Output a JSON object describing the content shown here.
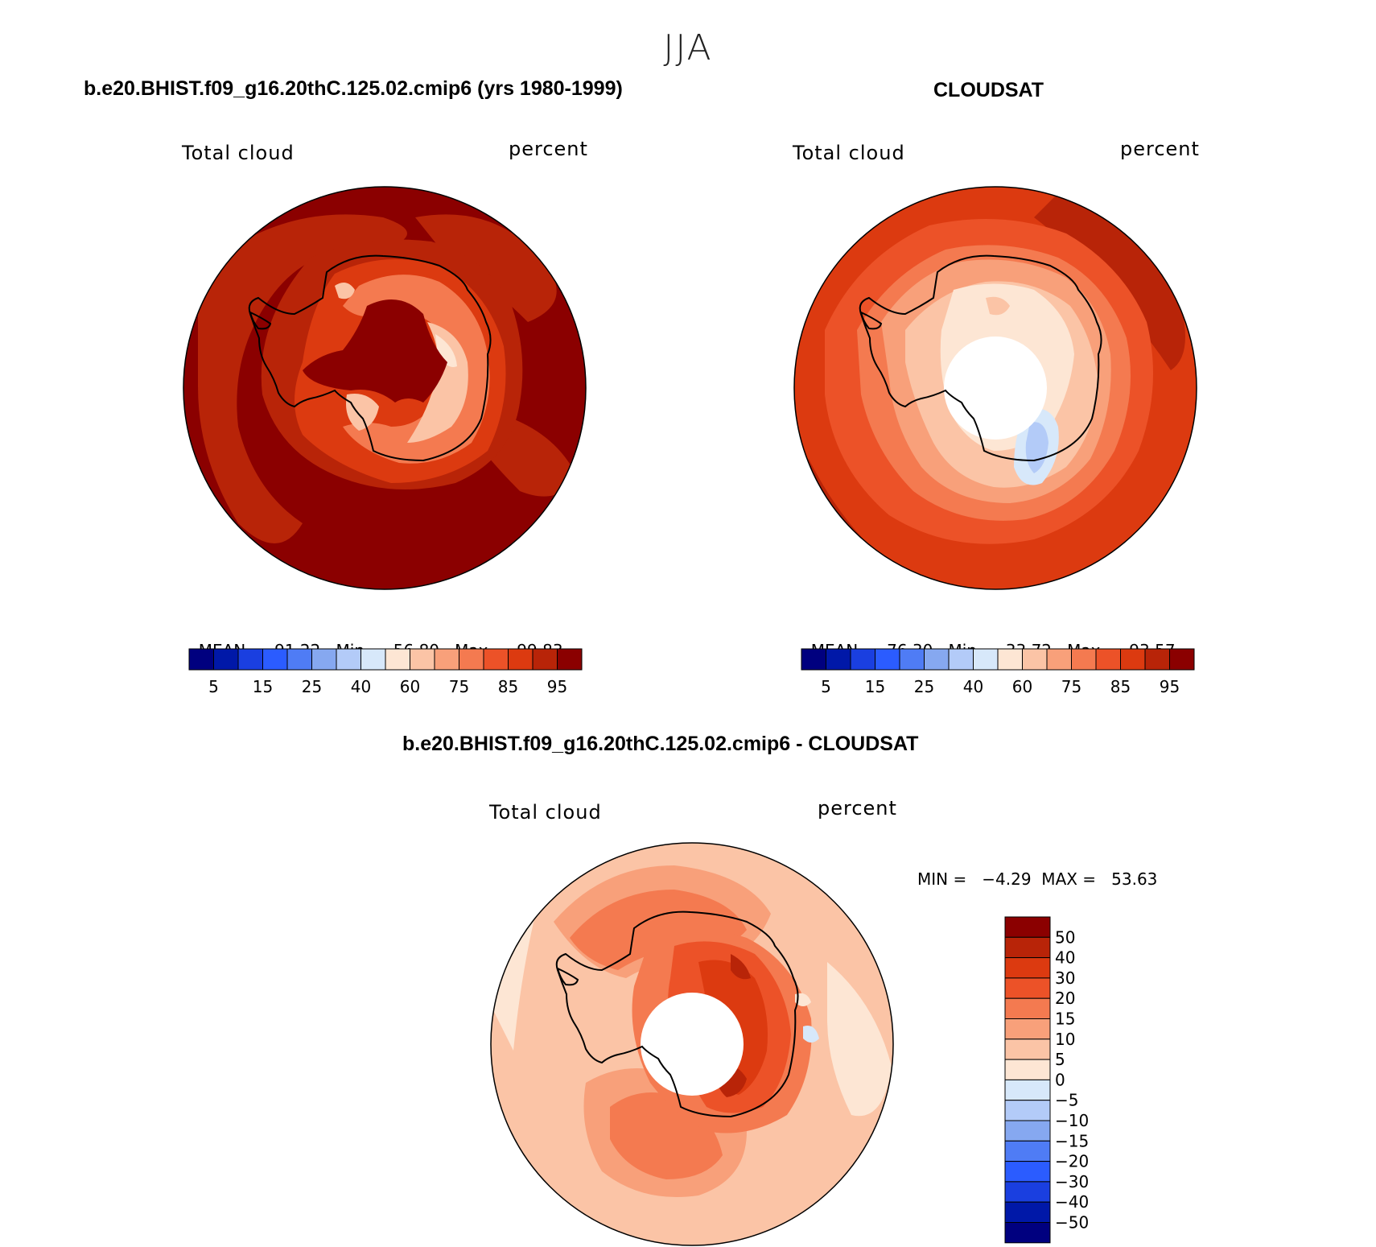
{
  "main_title": "JJA",
  "panels": [
    {
      "title": "b.e20.BHIST.f09_g16.20thC.125.02.cmip6 (yrs 1980-1999)",
      "variable": "Total cloud",
      "units": "percent",
      "stats": {
        "mean_label": "MEAN=",
        "mean": "91.22",
        "min_label": "Min=",
        "min": "56.80",
        "max_label": "Max=",
        "max": "99.83"
      }
    },
    {
      "title": "CLOUDSAT",
      "variable": "Total cloud",
      "units": "percent",
      "stats": {
        "mean_label": "MEAN=",
        "mean": "76.30",
        "min_label": "Min=",
        "min": "33.72",
        "max_label": "Max=",
        "max": "93.57"
      }
    },
    {
      "title": "b.e20.BHIST.f09_g16.20thC.125.02.cmip6 - CLOUDSAT",
      "variable": "Total cloud",
      "units": "percent",
      "stats_text": "MIN =   −4.29  MAX =   53.63"
    }
  ],
  "colorbar_abs": {
    "colors": [
      "#00007f",
      "#0018a8",
      "#1a3fe0",
      "#2b5cff",
      "#4f7cf5",
      "#86a8f0",
      "#b3cbf8",
      "#d7e8fa",
      "#fde6d4",
      "#fbc4a6",
      "#f8a07a",
      "#f47a50",
      "#ec5228",
      "#dc3a10",
      "#b82408",
      "#8b0000"
    ],
    "tick_labels": [
      "5",
      "15",
      "25",
      "40",
      "60",
      "75",
      "85",
      "95"
    ]
  },
  "colorbar_diff": {
    "colors": [
      "#8b0000",
      "#b82408",
      "#dc3a10",
      "#ec5228",
      "#f47a50",
      "#f8a07a",
      "#fbc4a6",
      "#fde6d4",
      "#d7e8fa",
      "#b3cbf8",
      "#86a8f0",
      "#4f7cf5",
      "#2b5cff",
      "#1a3fe0",
      "#0018a8",
      "#00007f"
    ],
    "tick_labels": [
      "50",
      "40",
      "30",
      "20",
      "15",
      "10",
      "5",
      "0",
      "−5",
      "−10",
      "−15",
      "−20",
      "−30",
      "−40",
      "−50"
    ]
  }
}
